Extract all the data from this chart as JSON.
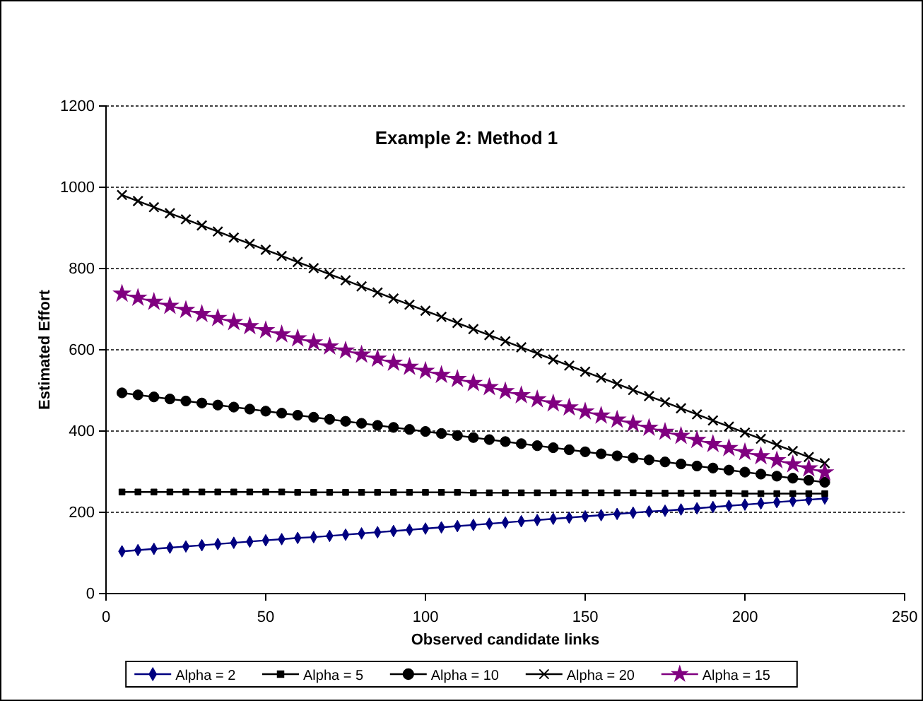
{
  "chart_data": {
    "type": "line",
    "title": "Example 2: Method 1",
    "xlabel": "Observed candidate links",
    "ylabel": "Estimated Effort",
    "x": [
      5,
      10,
      15,
      20,
      25,
      30,
      35,
      40,
      45,
      50,
      55,
      60,
      65,
      70,
      75,
      80,
      85,
      90,
      95,
      100,
      105,
      110,
      115,
      120,
      125,
      130,
      135,
      140,
      145,
      150,
      155,
      160,
      165,
      170,
      175,
      180,
      185,
      190,
      195,
      200,
      205,
      210,
      215,
      220,
      225
    ],
    "xlim": [
      0,
      250
    ],
    "xticks": [
      0,
      50,
      100,
      150,
      200,
      250
    ],
    "ylim": [
      0,
      1200
    ],
    "yticks": [
      0,
      200,
      400,
      600,
      800,
      1000,
      1200
    ],
    "grid": "y",
    "legend": "bottom",
    "line_style": "solid",
    "series": [
      {
        "name": "Alpha = 2",
        "color": "#000080",
        "marker": "diamond",
        "values": [
          104,
          107,
          110,
          113,
          116,
          119,
          122,
          125,
          128,
          131,
          134,
          137,
          139,
          142,
          145,
          148,
          151,
          154,
          157,
          160,
          163,
          166,
          169,
          172,
          175,
          178,
          181,
          184,
          187,
          190,
          193,
          196,
          199,
          202,
          204,
          207,
          210,
          213,
          216,
          219,
          222,
          225,
          228,
          231,
          234
        ]
      },
      {
        "name": "Alpha = 5",
        "color": "#000000",
        "marker": "square",
        "values": [
          250,
          250,
          250,
          250,
          250,
          250,
          250,
          250,
          250,
          250,
          250,
          249,
          249,
          249,
          249,
          249,
          249,
          249,
          249,
          249,
          249,
          249,
          248,
          248,
          248,
          248,
          248,
          248,
          248,
          248,
          248,
          248,
          248,
          247,
          247,
          247,
          247,
          247,
          247,
          246,
          246,
          246,
          246,
          246,
          246
        ]
      },
      {
        "name": "Alpha = 10",
        "color": "#000000",
        "marker": "circle",
        "values": [
          494,
          489,
          484,
          479,
          474,
          469,
          464,
          459,
          454,
          449,
          444,
          439,
          434,
          429,
          424,
          419,
          414,
          409,
          404,
          399,
          394,
          389,
          384,
          379,
          374,
          369,
          364,
          359,
          354,
          349,
          344,
          339,
          334,
          329,
          324,
          319,
          314,
          309,
          304,
          299,
          294,
          289,
          284,
          279,
          274
        ]
      },
      {
        "name": "Alpha = 20",
        "color": "#000000",
        "marker": "cross",
        "values": [
          981,
          966,
          951,
          936,
          921,
          906,
          891,
          876,
          861,
          846,
          831,
          816,
          801,
          786,
          771,
          756,
          741,
          726,
          711,
          696,
          681,
          666,
          651,
          636,
          621,
          606,
          591,
          576,
          561,
          546,
          531,
          516,
          501,
          486,
          471,
          456,
          441,
          426,
          411,
          396,
          381,
          366,
          351,
          336,
          321
        ]
      },
      {
        "name": "Alpha = 15",
        "color": "#800080",
        "marker": "star",
        "values": [
          738,
          728,
          718,
          708,
          698,
          688,
          678,
          668,
          658,
          648,
          638,
          628,
          618,
          608,
          598,
          588,
          578,
          568,
          558,
          548,
          538,
          528,
          518,
          508,
          498,
          488,
          478,
          468,
          458,
          448,
          438,
          428,
          418,
          408,
          398,
          388,
          378,
          368,
          358,
          348,
          338,
          328,
          318,
          308,
          298
        ]
      }
    ]
  }
}
